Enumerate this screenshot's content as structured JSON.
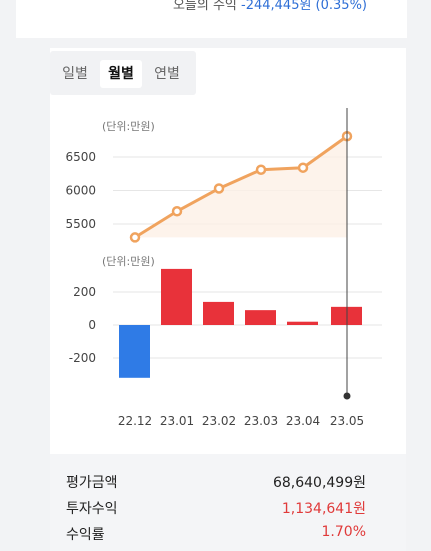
{
  "today": {
    "label": "오늘의 수익",
    "value": "-244,445원 (0.35%)"
  },
  "tabs": [
    {
      "label": "일별",
      "active": false
    },
    {
      "label": "월별",
      "active": true
    },
    {
      "label": "연별",
      "active": false
    }
  ],
  "colors": {
    "line": "#f0a35e",
    "up": "#e8323a",
    "down": "#2f7be6",
    "accent": "#2f6fd6"
  },
  "chart_data": [
    {
      "type": "line",
      "unit_label": "(단위:만원)",
      "x": [
        "22.12",
        "23.01",
        "23.02",
        "23.03",
        "23.04",
        "23.05"
      ],
      "values": [
        5300,
        5690,
        6030,
        6310,
        6340,
        6810
      ],
      "yticks": [
        "6500",
        "6000",
        "5500"
      ],
      "ylim": [
        5250,
        6900
      ],
      "grid": true
    },
    {
      "type": "bar",
      "unit_label": "(단위:만원)",
      "categories": [
        "22.12",
        "23.01",
        "23.02",
        "23.03",
        "23.04",
        "23.05"
      ],
      "values": [
        -320,
        340,
        140,
        90,
        20,
        110
      ],
      "yticks": [
        "200",
        "0",
        "-200"
      ],
      "ylim": [
        -380,
        380
      ],
      "grid": true
    }
  ],
  "x_labels": [
    "22.12",
    "23.01",
    "23.02",
    "23.03",
    "23.04",
    "23.05"
  ],
  "summary": [
    {
      "label": "평가금액",
      "value": "68,640,499원",
      "color": "normal"
    },
    {
      "label": "투자수익",
      "value": "1,134,641원",
      "color": "red"
    },
    {
      "label": "수익률",
      "value": "1.70%",
      "color": "red"
    }
  ]
}
